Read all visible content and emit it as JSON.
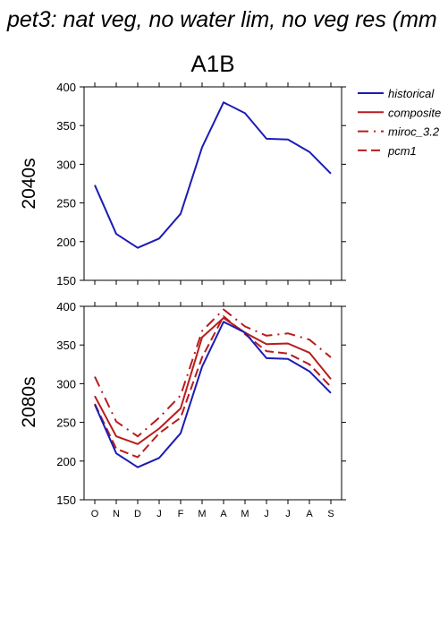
{
  "title": "pet3: nat veg, no water lim, no veg res (mm",
  "scenario": "A1B",
  "colors": {
    "historical": "#1c1cb4",
    "model": "#b81c1c",
    "axis": "#000000"
  },
  "legend": [
    {
      "label": "historical",
      "color": "#1c1cb4",
      "dash": "solid"
    },
    {
      "label": "composite",
      "color": "#b81c1c",
      "dash": "solid"
    },
    {
      "label": "miroc_3.2",
      "color": "#b81c1c",
      "dash": "dashdot"
    },
    {
      "label": "pcm1",
      "color": "#b81c1c",
      "dash": "dashed"
    }
  ],
  "chart_data": [
    {
      "type": "line",
      "row_label": "2040s",
      "x": [
        "O",
        "N",
        "D",
        "J",
        "F",
        "M",
        "A",
        "M",
        "J",
        "J",
        "A",
        "S"
      ],
      "ylim": [
        150,
        400
      ],
      "yticks": [
        150,
        200,
        250,
        300,
        350,
        400
      ],
      "series": [
        {
          "name": "historical",
          "values": [
            273,
            210,
            192,
            204,
            236,
            322,
            380,
            366,
            333,
            332,
            316,
            288
          ]
        }
      ]
    },
    {
      "type": "line",
      "row_label": "2080s",
      "x": [
        "O",
        "N",
        "D",
        "J",
        "F",
        "M",
        "A",
        "M",
        "J",
        "J",
        "A",
        "S"
      ],
      "ylim": [
        150,
        400
      ],
      "yticks": [
        150,
        200,
        250,
        300,
        350,
        400
      ],
      "series": [
        {
          "name": "historical",
          "values": [
            273,
            210,
            192,
            204,
            236,
            322,
            380,
            366,
            333,
            332,
            316,
            288
          ]
        },
        {
          "name": "composite",
          "values": [
            284,
            232,
            222,
            242,
            268,
            360,
            385,
            366,
            351,
            352,
            340,
            306
          ]
        },
        {
          "name": "miroc_3.2",
          "values": [
            309,
            251,
            232,
            256,
            285,
            368,
            396,
            374,
            362,
            365,
            357,
            334
          ]
        },
        {
          "name": "pcm1",
          "values": [
            274,
            216,
            205,
            236,
            256,
            334,
            387,
            364,
            342,
            339,
            325,
            296
          ]
        }
      ]
    }
  ]
}
